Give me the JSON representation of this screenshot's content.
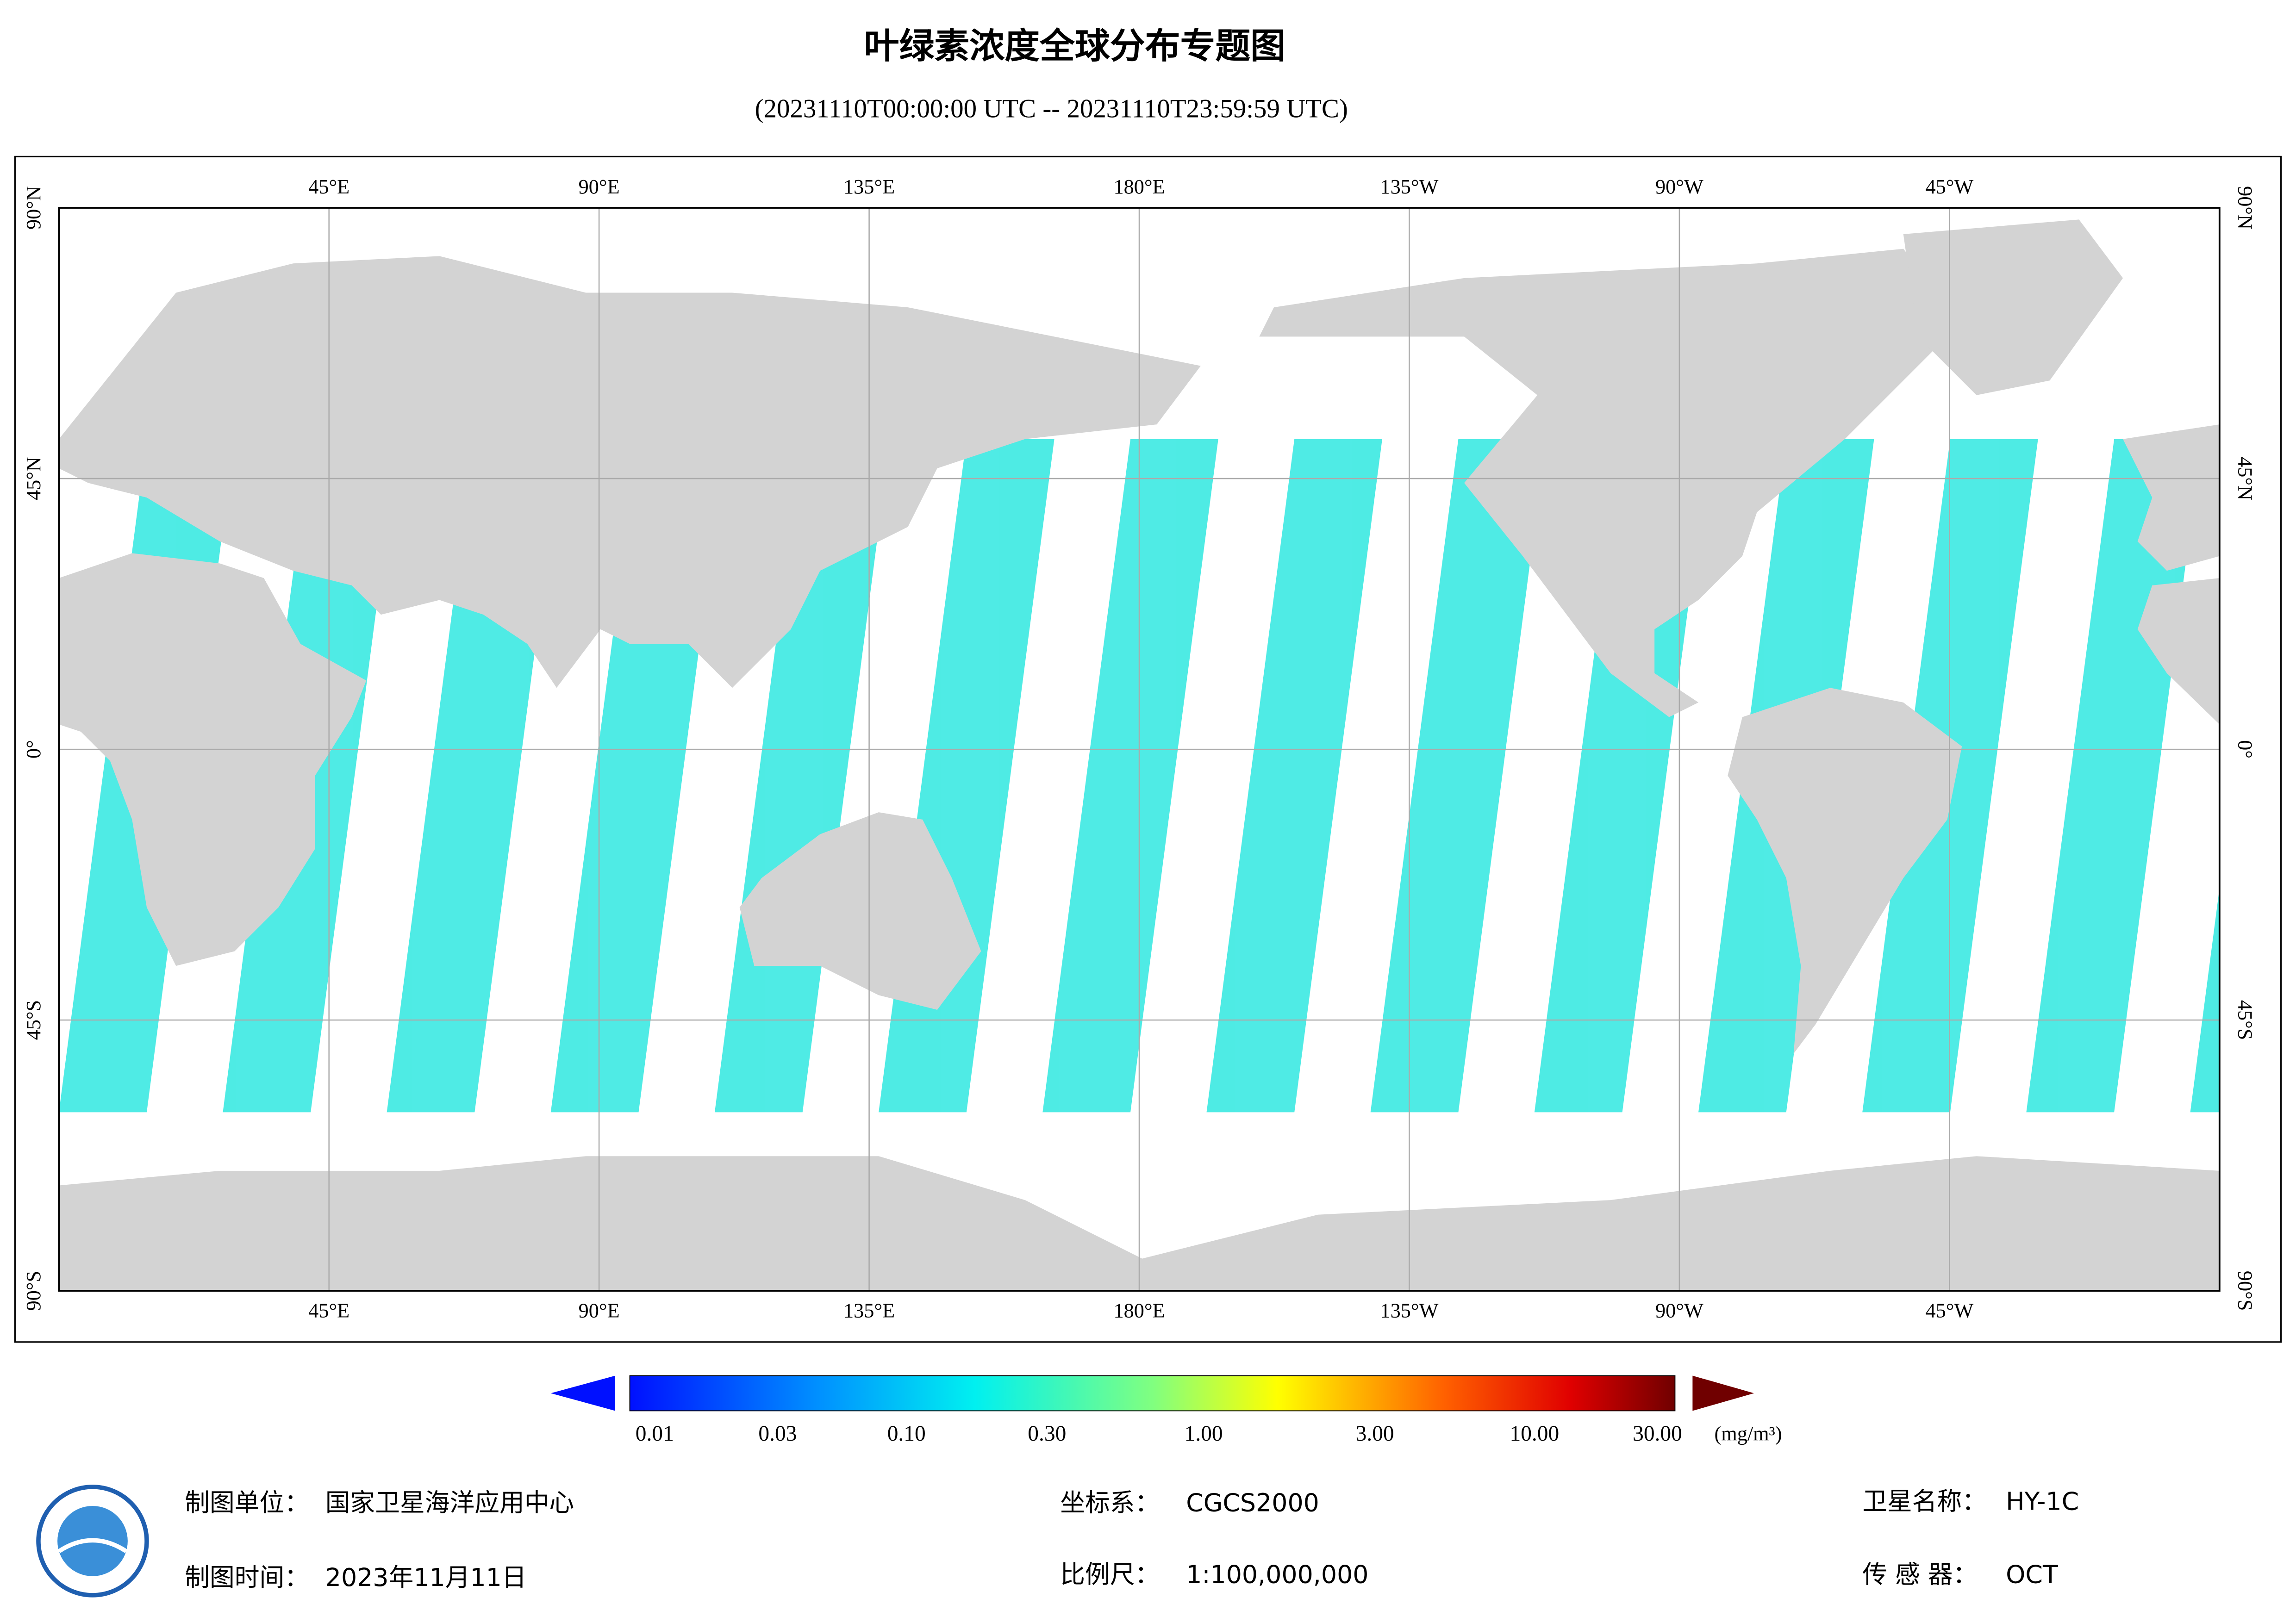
{
  "header": {
    "title": "叶绿素浓度全球分布专题图",
    "subtitle": "(20231110T00:00:00 UTC -- 20231110T23:59:59 UTC)"
  },
  "map": {
    "lon_labels": [
      "45°E",
      "90°E",
      "135°E",
      "180°E",
      "135°W",
      "90°W",
      "45°W"
    ],
    "lat_labels": [
      "90°N",
      "45°N",
      "0°",
      "45°S",
      "90°S"
    ]
  },
  "colorbar": {
    "labels": [
      "0.01",
      "0.03",
      "0.10",
      "0.30",
      "1.00",
      "3.00",
      "10.00",
      "30.00"
    ],
    "unit": "(mg/m³)"
  },
  "footer": {
    "unit": {
      "label": "制图单位：",
      "value": "国家卫星海洋应用中心"
    },
    "time": {
      "label": "制图时间：",
      "value": "2023年11月11日"
    },
    "crs": {
      "label": "坐标系：",
      "value": "CGCS2000"
    },
    "scale": {
      "label": "比例尺：",
      "value": "1:100,000,000"
    },
    "satellite": {
      "label": "卫星名称：",
      "value": "HY-1C"
    },
    "sensor": {
      "label": "传 感 器：",
      "value": "OCT"
    }
  }
}
